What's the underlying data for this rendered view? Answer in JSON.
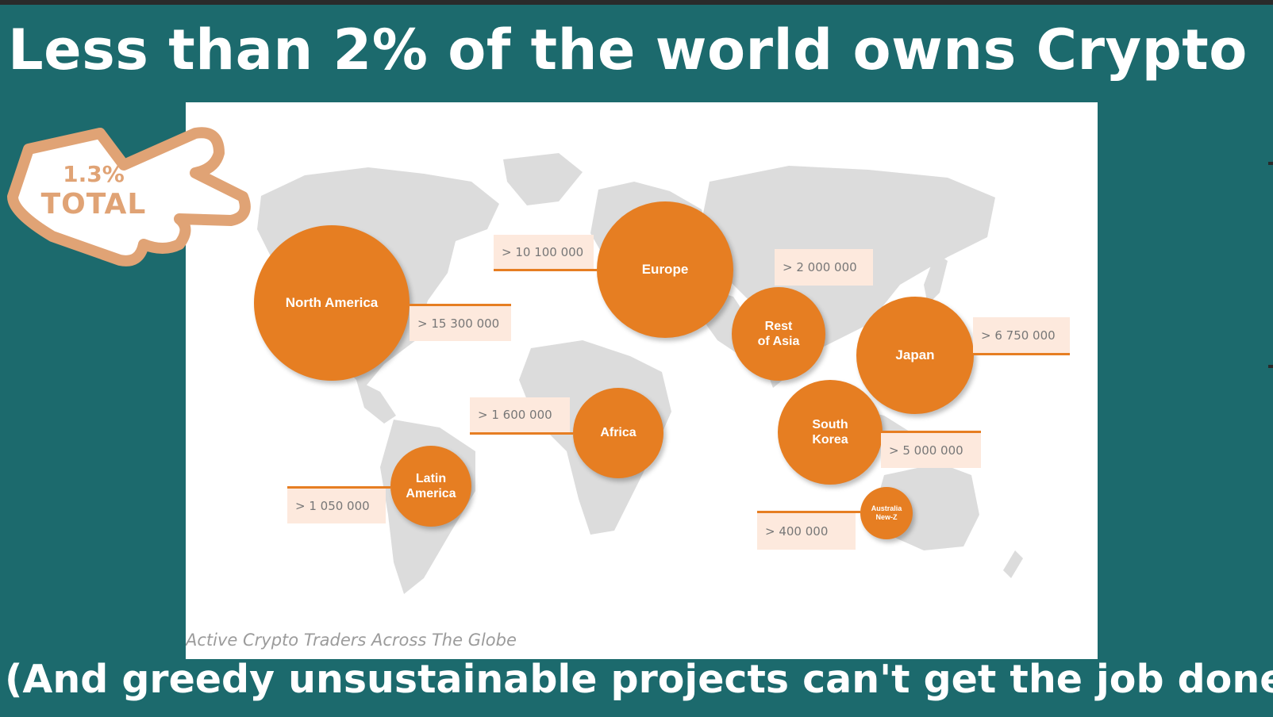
{
  "headline": "Less than 2% of the world owns Crypto",
  "footer": "(And greedy unsustainable projects can't get the job done)",
  "badge": {
    "line1": "1.3%",
    "line2": "TOTAL"
  },
  "map": {
    "caption": "Active Crypto Traders Across The Globe",
    "regions": [
      {
        "id": "north-america",
        "label": "North America",
        "value": "> 15 300 000"
      },
      {
        "id": "europe",
        "label": "Europe",
        "value": "> 10 100 000"
      },
      {
        "id": "rest-of-asia",
        "label": "Rest\nof Asia",
        "value": "> 2 000 000"
      },
      {
        "id": "japan",
        "label": "Japan",
        "value": "> 6 750 000"
      },
      {
        "id": "africa",
        "label": "Africa",
        "value": "> 1 600 000"
      },
      {
        "id": "south-korea",
        "label": "South\nKorea",
        "value": "> 5 000 000"
      },
      {
        "id": "latin-america",
        "label": "Latin\nAmerica",
        "value": "> 1 050 000"
      },
      {
        "id": "australia",
        "label": "Australia\nNew-Z",
        "value": "> 400 000"
      }
    ]
  },
  "colors": {
    "background": "#1c6a6d",
    "bubble": "#e67e22",
    "value_box": "#fde9dd",
    "hand_outline": "#e0a375"
  },
  "icons": [
    "pointing-hand-icon"
  ]
}
